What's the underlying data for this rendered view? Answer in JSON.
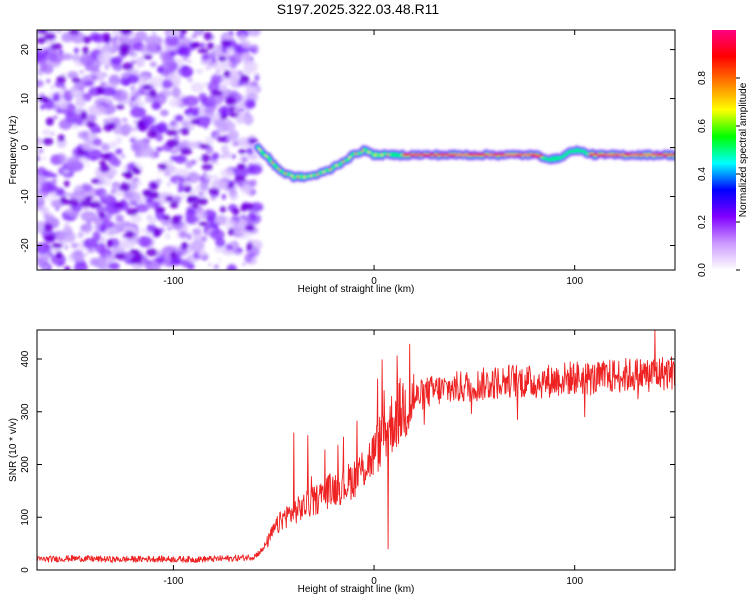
{
  "title": "S197.2025.322.03.48.R11",
  "chart_data": [
    {
      "type": "heatmap",
      "xlabel": "Height of straight line (km)",
      "ylabel": "Frequency (Hz)",
      "xlim": [
        -168,
        150
      ],
      "ylim": [
        -25,
        24
      ],
      "xticks": [
        -100,
        0,
        100
      ],
      "yticks": [
        -20,
        -10,
        0,
        10,
        20
      ],
      "colorbar": {
        "label": "Normalized spectral amplitude",
        "range": [
          0,
          1
        ],
        "ticks": [
          "0.0",
          "0.2",
          "0.4",
          "0.6",
          "0.8"
        ],
        "tick_values": [
          0.0,
          0.2,
          0.4,
          0.6,
          0.8
        ],
        "colors": [
          "#ffffff",
          "#cc99ff",
          "#8000ff",
          "#0000ff",
          "#00ffff",
          "#00ff00",
          "#ffff00",
          "#ff8000",
          "#ff0000",
          "#ff0080"
        ]
      },
      "noise_region_x": [
        -168,
        -58
      ],
      "signal_track": {
        "x": [
          -58,
          -52,
          -46,
          -40,
          -34,
          -28,
          -22,
          -16,
          -10,
          -5,
          0,
          10,
          20,
          40,
          60,
          80,
          90,
          100,
          110,
          130,
          150
        ],
        "freq": [
          0,
          -2.5,
          -5,
          -6,
          -6,
          -5.5,
          -4.5,
          -3,
          -1.5,
          -0.5,
          -1.5,
          -1.5,
          -1.5,
          -1.5,
          -1.5,
          -1.5,
          -2.5,
          -0.5,
          -1.5,
          -1.5,
          -1.5
        ]
      }
    },
    {
      "type": "line",
      "xlabel": "Height of straight line (km)",
      "ylabel": "SNR (10 * v/v)",
      "xlim": [
        -168,
        150
      ],
      "ylim": [
        0,
        455
      ],
      "xticks": [
        -100,
        0,
        100
      ],
      "yticks": [
        0,
        100,
        200,
        300,
        400
      ],
      "color": "#ee2222",
      "series": [
        {
          "name": "SNR",
          "x": [
            -168,
            -150,
            -130,
            -110,
            -90,
            -70,
            -60,
            -55,
            -50,
            -45,
            -40,
            -35,
            -30,
            -25,
            -20,
            -15,
            -10,
            -5,
            0,
            5,
            10,
            15,
            20,
            25,
            30,
            40,
            50,
            60,
            70,
            80,
            90,
            100,
            110,
            120,
            130,
            140,
            150
          ],
          "values": [
            20,
            22,
            20,
            21,
            20,
            22,
            25,
            40,
            75,
            100,
            110,
            120,
            130,
            145,
            155,
            160,
            175,
            195,
            220,
            260,
            285,
            310,
            325,
            335,
            340,
            345,
            350,
            355,
            360,
            355,
            360,
            365,
            362,
            368,
            370,
            372,
            375
          ]
        }
      ],
      "spikes": [
        {
          "x": -40,
          "value": 260
        },
        {
          "x": -33,
          "value": 255
        },
        {
          "x": 5,
          "value": 340
        },
        {
          "x": 7,
          "value": 40
        },
        {
          "x": 140,
          "value": 455
        }
      ]
    }
  ]
}
